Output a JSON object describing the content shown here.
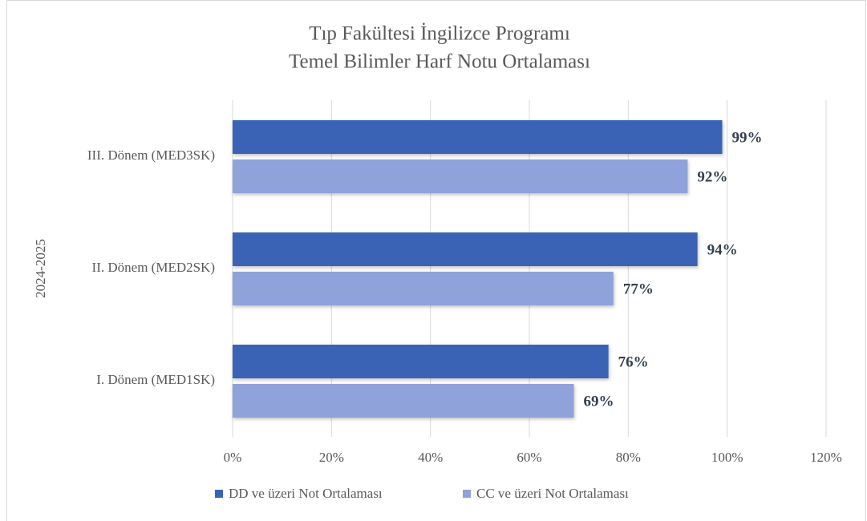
{
  "chart_data": {
    "type": "bar",
    "orientation": "horizontal",
    "title": [
      "Tıp Fakültesi İngilizce Programı",
      "Temel Bilimler Harf Notu Ortalaması"
    ],
    "group_label": "2024-2025",
    "categories": [
      "I. Dönem (MED1SK)",
      "II. Dönem (MED2SK)",
      "III. Dönem (MED3SK)"
    ],
    "series": [
      {
        "name": "DD ve üzeri Not Ortalaması",
        "color": "#3b63b5",
        "values": [
          76,
          94,
          99
        ],
        "value_labels": [
          "76%",
          "94%",
          "99%"
        ]
      },
      {
        "name": "CC ve üzeri Not Ortalaması",
        "color": "#8fa2da",
        "values": [
          69,
          77,
          92
        ],
        "value_labels": [
          "69%",
          "77%",
          "92%"
        ]
      }
    ],
    "xlim": [
      0,
      120
    ],
    "xticks": [
      {
        "value": 0,
        "label": "0%"
      },
      {
        "value": 20,
        "label": "20%"
      },
      {
        "value": 40,
        "label": "40%"
      },
      {
        "value": 60,
        "label": "60%"
      },
      {
        "value": 80,
        "label": "80%"
      },
      {
        "value": 100,
        "label": "100%"
      },
      {
        "value": 120,
        "label": "120%"
      }
    ],
    "grid": true,
    "legend": "bottom"
  }
}
